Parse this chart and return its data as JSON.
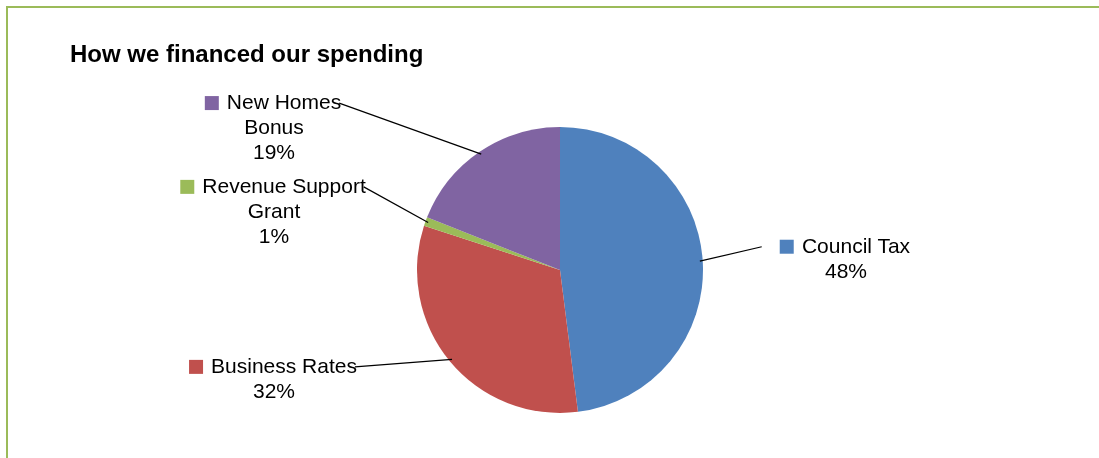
{
  "chart_data": {
    "type": "pie",
    "title": "How we financed our spending",
    "categories": [
      "Council Tax",
      "Business Rates",
      "Revenue Support Grant",
      "New Homes Bonus"
    ],
    "values": [
      48,
      32,
      1,
      19
    ],
    "value_labels": [
      "48%",
      "32%",
      "1%",
      "19%"
    ],
    "colors": [
      "#4f81bd",
      "#c0504d",
      "#9bbb59",
      "#8064a2"
    ],
    "legend": "top left"
  }
}
